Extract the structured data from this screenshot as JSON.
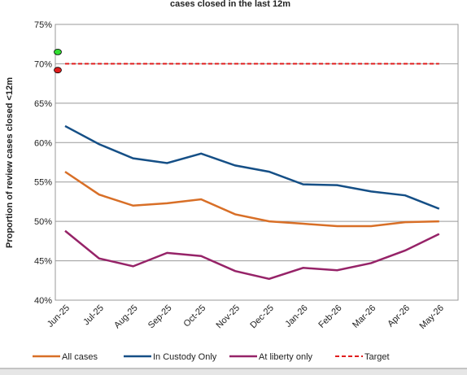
{
  "chart_data": {
    "type": "line",
    "title": "cases closed in the last 12m",
    "y_label": "Proportion of review cases closed <12m",
    "categories": [
      "Jun-25",
      "Jul-25",
      "Aug-25",
      "Sep-25",
      "Oct-25",
      "Nov-25",
      "Dec-25",
      "Jan-26",
      "Feb-26",
      "Mar-26",
      "Apr-26",
      "May-26"
    ],
    "series": [
      {
        "name": "All cases",
        "color": "#d86f27",
        "dash": false,
        "values": [
          56.3,
          53.4,
          52.0,
          52.3,
          52.8,
          50.9,
          50.0,
          49.7,
          49.4,
          49.4,
          49.9,
          50.0
        ]
      },
      {
        "name": "In Custody Only",
        "color": "#154f86",
        "dash": false,
        "values": [
          62.1,
          59.8,
          58.0,
          57.4,
          58.6,
          57.1,
          56.3,
          54.7,
          54.6,
          53.8,
          53.3,
          51.6
        ]
      },
      {
        "name": "At liberty only",
        "color": "#962368",
        "dash": false,
        "values": [
          48.8,
          45.3,
          44.3,
          46.0,
          45.6,
          43.7,
          42.7,
          44.1,
          43.8,
          44.7,
          46.3,
          48.4
        ]
      },
      {
        "name": "Target",
        "color": "#e01e1e",
        "dash": true,
        "values": [
          70,
          70,
          70,
          70,
          70,
          70,
          70,
          70,
          70,
          70,
          70,
          70
        ]
      }
    ],
    "markers": [
      {
        "color": "#33dd33",
        "value": 71.5
      },
      {
        "color": "#e01e1e",
        "value": 69.2
      }
    ],
    "ylim": [
      40,
      75
    ],
    "yticks": [
      {
        "value": 40,
        "label": "40%"
      },
      {
        "value": 45,
        "label": "45%"
      },
      {
        "value": 50,
        "label": "50%"
      },
      {
        "value": 55,
        "label": "55%"
      },
      {
        "value": 60,
        "label": "60%"
      },
      {
        "value": 65,
        "label": "65%"
      },
      {
        "value": 70,
        "label": "70%"
      },
      {
        "value": 75,
        "label": "75%"
      }
    ],
    "grid": true,
    "legend": "bottom"
  }
}
